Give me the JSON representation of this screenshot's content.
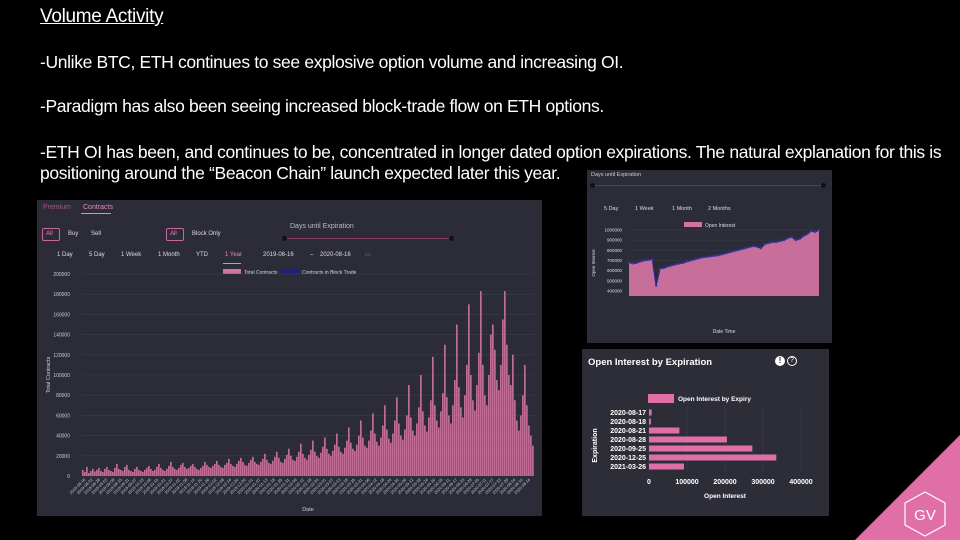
{
  "slide": {
    "title": "Volume Activity",
    "bullets": [
      "-Unlike BTC, ETH continues to see explosive option volume and increasing OI.",
      "-Paradigm has also been seeing increased block-trade flow on ETH options.",
      "-ETH OI has been, and continues to be, concentrated in longer dated option expirations. The natural explanation for this is positioning around the “Beacon Chain” launch expected later this year."
    ],
    "brand_mark": "GV",
    "brand_color": "#e06fa8"
  },
  "volume_panel": {
    "tabs": [
      "Premium",
      "Contracts"
    ],
    "active_tab": "Contracts",
    "type_filters": [
      "All",
      "Buy",
      "Sell"
    ],
    "trade_filters": [
      "All",
      "Block Only"
    ],
    "slider_label": "Days until Expiration",
    "ranges": [
      "1 Day",
      "5 Day",
      "1 Week",
      "1 Month",
      "YTD",
      "1 Year"
    ],
    "active_range": "1 Year",
    "date_from": "2019-08-16",
    "date_sep": "–",
    "date_to": "2020-08-16",
    "calendar_icon": "calendar-icon",
    "accent": "#c8689c"
  },
  "oi_time_panel": {
    "slider_label": "Days until Expiration",
    "ranges": [
      "5 Day",
      "1 Week",
      "1 Month",
      "2 Months"
    ]
  },
  "oi_expiry_panel": {
    "title": "Open Interest by Expiration",
    "info_icon": "alert-icon",
    "help_icon": "help-icon"
  },
  "chart_data": [
    {
      "type": "bar",
      "legend": [
        "Total Contracts",
        "Contracts in Block Trade"
      ],
      "ylabel": "Total Contracts",
      "xlabel": "Date",
      "ylim": [
        0,
        200000
      ],
      "yticks": [
        0,
        20000,
        40000,
        60000,
        80000,
        100000,
        120000,
        140000,
        160000,
        180000,
        200000
      ],
      "x_range": [
        "2019-08-16",
        "2020-08-14"
      ],
      "xtick_labels": [
        "2019-08-16",
        "2019-08-22",
        "2019-08-28",
        "2019-09-03",
        "2019-09-09",
        "2019-09-15",
        "2019-09-21",
        "2019-09-27",
        "2019-10-03",
        "2019-10-09",
        "2019-10-15",
        "2019-10-21",
        "2019-10-27",
        "2019-11-02",
        "2019-11-08",
        "2019-11-14",
        "2019-11-20",
        "2019-11-26",
        "2019-12-02",
        "2019-12-08",
        "2019-12-14",
        "2019-12-20",
        "2019-12-26",
        "2020-01-01",
        "2020-01-07",
        "2020-01-13",
        "2020-01-19",
        "2020-01-25",
        "2020-01-31",
        "2020-02-06",
        "2020-02-12",
        "2020-02-18",
        "2020-02-24",
        "2020-03-01",
        "2020-03-07",
        "2020-03-13",
        "2020-03-19",
        "2020-03-25",
        "2020-03-31",
        "2020-04-06",
        "2020-04-12",
        "2020-04-18",
        "2020-04-24",
        "2020-04-30",
        "2020-05-06",
        "2020-05-12",
        "2020-05-18",
        "2020-05-24",
        "2020-05-30",
        "2020-06-05",
        "2020-06-11",
        "2020-06-17",
        "2020-06-23",
        "2020-06-29",
        "2020-07-05",
        "2020-07-11",
        "2020-07-17",
        "2020-07-23",
        "2020-07-29",
        "2020-08-04",
        "2020-08-10",
        "2020-08-14"
      ],
      "series": [
        {
          "name": "Total Contracts",
          "color": "#d0739f",
          "values": [
            6000,
            4000,
            9000,
            3000,
            5000,
            7000,
            4500,
            6000,
            8000,
            5000,
            4000,
            7000,
            9000,
            6000,
            5000,
            4000,
            8000,
            12000,
            7000,
            6000,
            5000,
            9000,
            11000,
            6000,
            5000,
            4000,
            7000,
            9000,
            6000,
            5000,
            4000,
            6000,
            8000,
            10000,
            7000,
            5000,
            6000,
            9000,
            12000,
            8000,
            6000,
            5000,
            7000,
            10000,
            14000,
            9000,
            7000,
            6000,
            8000,
            11000,
            13000,
            9000,
            7000,
            8000,
            10000,
            12000,
            9000,
            7000,
            6000,
            8000,
            10000,
            14000,
            11000,
            9000,
            8000,
            10000,
            12000,
            15000,
            11000,
            9000,
            8000,
            11000,
            13000,
            17000,
            12000,
            10000,
            9000,
            12000,
            15000,
            18000,
            14000,
            11000,
            10000,
            13000,
            16000,
            19000,
            14000,
            12000,
            11000,
            14000,
            17000,
            22000,
            16000,
            13000,
            12000,
            15000,
            19000,
            24000,
            18000,
            14000,
            13000,
            17000,
            21000,
            27000,
            20000,
            16000,
            15000,
            19000,
            24000,
            32000,
            22000,
            18000,
            16000,
            21000,
            26000,
            35000,
            24000,
            20000,
            18000,
            23000,
            29000,
            38000,
            27000,
            22000,
            20000,
            25000,
            31000,
            42000,
            29000,
            24000,
            22000,
            28000,
            35000,
            48000,
            33000,
            27000,
            25000,
            31000,
            40000,
            55000,
            38000,
            30000,
            28000,
            35000,
            45000,
            62000,
            42000,
            34000,
            30000,
            38000,
            50000,
            70000,
            46000,
            37000,
            33000,
            42000,
            55000,
            78000,
            52000,
            40000,
            36000,
            46000,
            60000,
            90000,
            58000,
            45000,
            40000,
            52000,
            68000,
            100000,
            64000,
            50000,
            44000,
            58000,
            75000,
            118000,
            70000,
            55000,
            48000,
            64000,
            82000,
            130000,
            78000,
            60000,
            52000,
            70000,
            95000,
            150000,
            88000,
            68000,
            58000,
            80000,
            110000,
            170000,
            100000,
            75000,
            65000,
            90000,
            122000,
            183000,
            110000,
            80000,
            70000,
            100000,
            140000,
            150000,
            125000,
            95000,
            85000,
            110000,
            155000,
            183000,
            130000,
            100000,
            90000,
            120000,
            75000,
            55000,
            45000,
            60000,
            80000,
            110000,
            70000,
            50000,
            40000,
            30000
          ]
        },
        {
          "name": "Contracts in Block Trade",
          "color": "#1f1f8c"
        }
      ]
    },
    {
      "type": "area",
      "legend": [
        "Open Interest"
      ],
      "ylabel": "Open Interest",
      "xlabel": "Date Time",
      "ylim": [
        350000,
        1000000
      ],
      "yticks": [
        400000,
        500000,
        600000,
        700000,
        800000,
        900000,
        1000000
      ],
      "x_range": [
        "2020-05-18",
        "2020-08-15"
      ],
      "values": [
        680000,
        670000,
        675000,
        690000,
        700000,
        705000,
        710000,
        450000,
        620000,
        625000,
        640000,
        650000,
        660000,
        670000,
        675000,
        690000,
        700000,
        710000,
        720000,
        730000,
        735000,
        740000,
        745000,
        750000,
        760000,
        770000,
        780000,
        790000,
        800000,
        810000,
        820000,
        830000,
        840000,
        835000,
        820000,
        860000,
        870000,
        880000,
        880000,
        890000,
        900000,
        920000,
        930000,
        900000,
        910000,
        940000,
        960000,
        990000,
        980000,
        1000000
      ]
    },
    {
      "type": "bar",
      "orientation": "horizontal",
      "legend": [
        "Open Interest by Expiry"
      ],
      "xlabel": "Open Interest",
      "ylabel": "Expiration",
      "xlim": [
        0,
        400000
      ],
      "xticks": [
        0,
        100000,
        200000,
        300000,
        400000
      ],
      "categories": [
        "2020-08-17",
        "2020-08-18",
        "2020-08-21",
        "2020-08-28",
        "2020-09-25",
        "2020-12-25",
        "2021-03-26"
      ],
      "values": [
        7000,
        5000,
        80000,
        205000,
        272000,
        335000,
        92000
      ]
    }
  ]
}
